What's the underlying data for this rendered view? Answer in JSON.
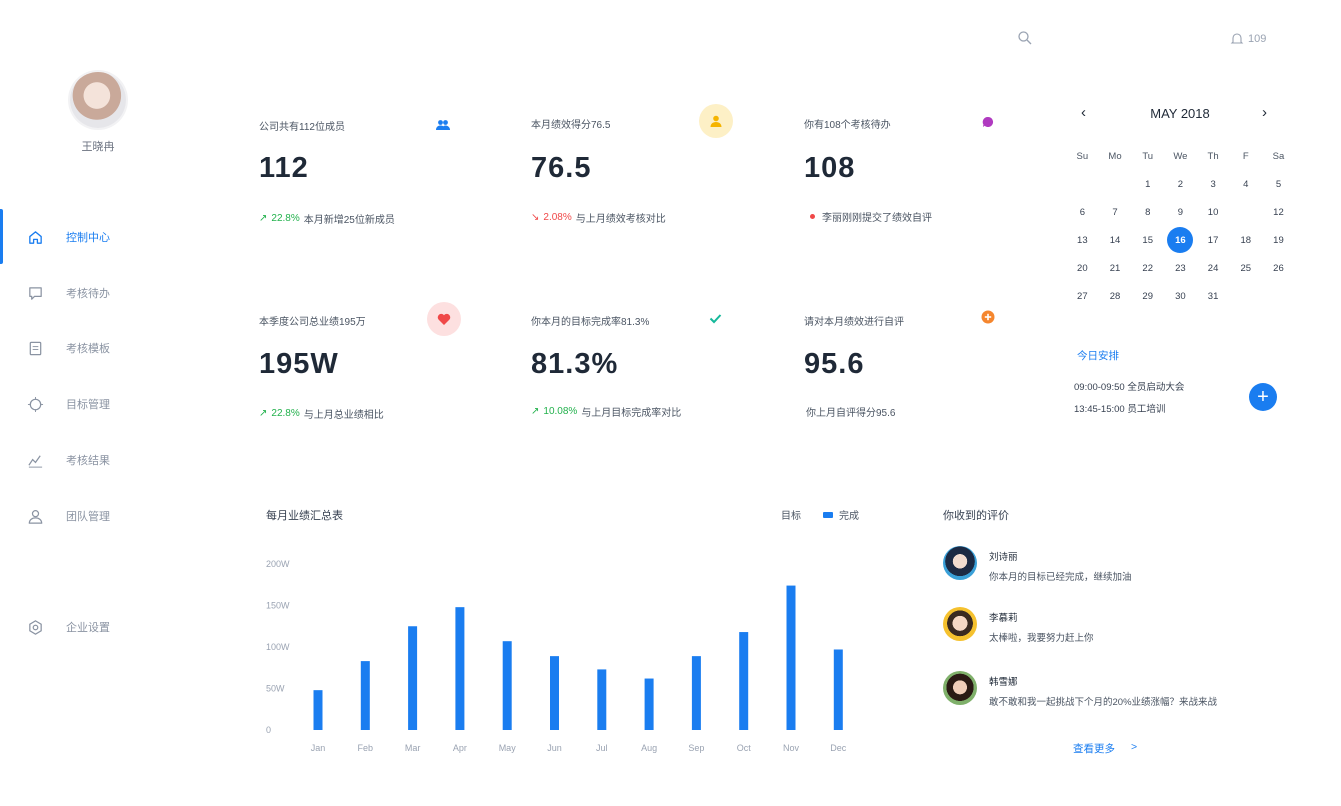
{
  "topbar": {
    "notification_count": "109",
    "search_icon": "search-icon",
    "bell_icon": "bell-icon"
  },
  "user": {
    "name": "王晓冉"
  },
  "nav": {
    "items": [
      {
        "label": "控制中心",
        "icon": "home-icon",
        "active": true
      },
      {
        "label": "考核待办",
        "icon": "chat-icon",
        "active": false
      },
      {
        "label": "考核模板",
        "icon": "document-icon",
        "active": false
      },
      {
        "label": "目标管理",
        "icon": "target-icon",
        "active": false
      },
      {
        "label": "考核结果",
        "icon": "trend-icon",
        "active": false
      },
      {
        "label": "团队管理",
        "icon": "team-icon",
        "active": false
      }
    ],
    "settings": {
      "label": "企业设置",
      "icon": "settings-icon"
    }
  },
  "cards": [
    {
      "label": "公司共有112位成员",
      "value": "112",
      "trend": "22.8%",
      "trend_dir": "up",
      "foot": "本月新增25位新成员",
      "icon": "users-icon",
      "color": "#1a7df0"
    },
    {
      "label": "本月绩效得分76.5",
      "value": "76.5",
      "trend": "2.08%",
      "trend_dir": "down",
      "foot": "与上月绩效考核对比",
      "icon": "user-icon",
      "color": "#f5b400"
    },
    {
      "label": "你有108个考核待办",
      "value": "108",
      "trend": "",
      "trend_dir": "dot",
      "foot": "李丽刚刚提交了绩效自评",
      "icon": "message-icon",
      "color": "#b03ac0"
    },
    {
      "label": "本季度公司总业绩195万",
      "value": "195W",
      "trend": "22.8%",
      "trend_dir": "up",
      "foot": "与上月总业绩相比",
      "icon": "heart-icon",
      "color": "#f04848"
    },
    {
      "label": "你本月的目标完成率81.3%",
      "value": "81.3%",
      "trend": "10.08%",
      "trend_dir": "up",
      "foot": "与上月目标完成率对比",
      "icon": "check-icon",
      "color": "#14b89a"
    },
    {
      "label": "请对本月绩效进行自评",
      "value": "95.6",
      "trend": "",
      "trend_dir": "none",
      "foot": "你上月自评得分95.6",
      "icon": "plus-circle-icon",
      "color": "#f5862e"
    }
  ],
  "calendar": {
    "title": "MAY 2018",
    "weekdays": [
      "Su",
      "Mo",
      "Tu",
      "We",
      "Th",
      "F",
      "Sa"
    ],
    "selected": 16,
    "weeks": [
      [
        "",
        "",
        "1",
        "2",
        "3",
        "4",
        "5"
      ],
      [
        "6",
        "7",
        "8",
        "9",
        "10",
        "",
        "12"
      ],
      [
        "13",
        "14",
        "15",
        "16",
        "17",
        "18",
        "19"
      ],
      [
        "20",
        "21",
        "22",
        "23",
        "24",
        "25",
        "26"
      ],
      [
        "27",
        "28",
        "29",
        "30",
        "31",
        "",
        ""
      ]
    ]
  },
  "schedule": {
    "title": "今日安排",
    "items": [
      "09:00-09:50 全员启动大会",
      "13:45-15:00 员工培训"
    ]
  },
  "chart_data": {
    "type": "bar",
    "title": "每月业绩汇总表",
    "legend": [
      "目标",
      "完成"
    ],
    "categories": [
      "Jan",
      "Feb",
      "Mar",
      "Apr",
      "May",
      "Jun",
      "Jul",
      "Aug",
      "Sep",
      "Oct",
      "Nov",
      "Dec"
    ],
    "series": [
      {
        "name": "完成",
        "values": [
          48,
          83,
          125,
          148,
          107,
          89,
          73,
          62,
          89,
          118,
          174,
          97
        ]
      }
    ],
    "y_ticks": [
      "0",
      "50W",
      "100W",
      "150W",
      "200W"
    ],
    "ylim": [
      0,
      200
    ],
    "color": "#1a7df0"
  },
  "evaluations": {
    "title": "你收到的评价",
    "items": [
      {
        "name": "刘诗丽",
        "text": "你本月的目标已经完成，继续加油"
      },
      {
        "name": "李慕莉",
        "text": "太棒啦，我要努力赶上你"
      },
      {
        "name": "韩雪娜",
        "text": "敢不敢和我一起挑战下个月的20%业绩涨幅？来战来战"
      }
    ],
    "more": "查看更多",
    "more_arrow": ">"
  }
}
